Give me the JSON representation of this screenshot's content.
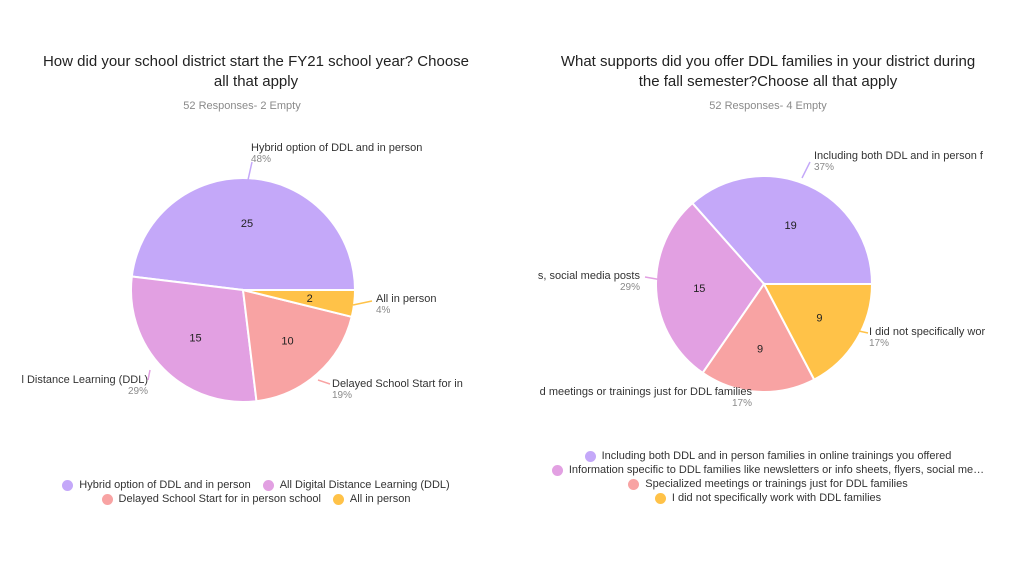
{
  "chart_data": [
    {
      "type": "pie",
      "title": "How did your school district start the FY21 school year? Choose all that apply",
      "title_lines": [
        "How did your school district start the FY21 school year? Choose",
        "all that apply"
      ],
      "subtitle": "52 Responses- 2 Empty",
      "slices": [
        {
          "label": "Hybrid option of DDL and in person",
          "value": 25,
          "percent": "48%",
          "color": "#c4a8f9"
        },
        {
          "label": "All Digital Distance Learning (DDL)",
          "value": 15,
          "percent": "29%",
          "color": "#e2a0e2"
        },
        {
          "label": "Delayed School Start for in person school",
          "value": 10,
          "percent": "19%",
          "color": "#f8a3a3"
        },
        {
          "label": "All in person",
          "value": 2,
          "percent": "4%",
          "color": "#ffc248"
        }
      ],
      "callout_texts": [
        "Hybrid option of DDL and in person",
        "l Distance Learning (DDL)",
        "Delayed School Start for in",
        "All in person"
      ],
      "legend_placement": "bottom"
    },
    {
      "type": "pie",
      "title": "What supports did you offer DDL families in your district during the fall semester?Choose all that apply",
      "title_lines": [
        "What supports did you offer DDL families in your district during",
        "the fall semester?Choose all that apply"
      ],
      "subtitle": "52 Responses- 4 Empty",
      "slices": [
        {
          "label": "Including both DDL and in person families in  online trainings you offered",
          "value": 19,
          "percent": "37%",
          "color": "#c4a8f9"
        },
        {
          "label": "Information specific to DDL families like newsletters or info sheets, flyers, social me…",
          "value": 15,
          "percent": "29%",
          "color": "#e2a0e2"
        },
        {
          "label": "Specialized meetings or trainings just for DDL families",
          "value": 9,
          "percent": "17%",
          "color": "#f8a3a3"
        },
        {
          "label": "I did not specifically work with DDL families",
          "value": 9,
          "percent": "17%",
          "color": "#ffc248"
        }
      ],
      "callout_texts": [
        "Including both DDL and in person f",
        "s, social media posts",
        "d meetings or trainings just for DDL families",
        "I did not specifically wor"
      ],
      "legend_placement": "bottom"
    }
  ]
}
